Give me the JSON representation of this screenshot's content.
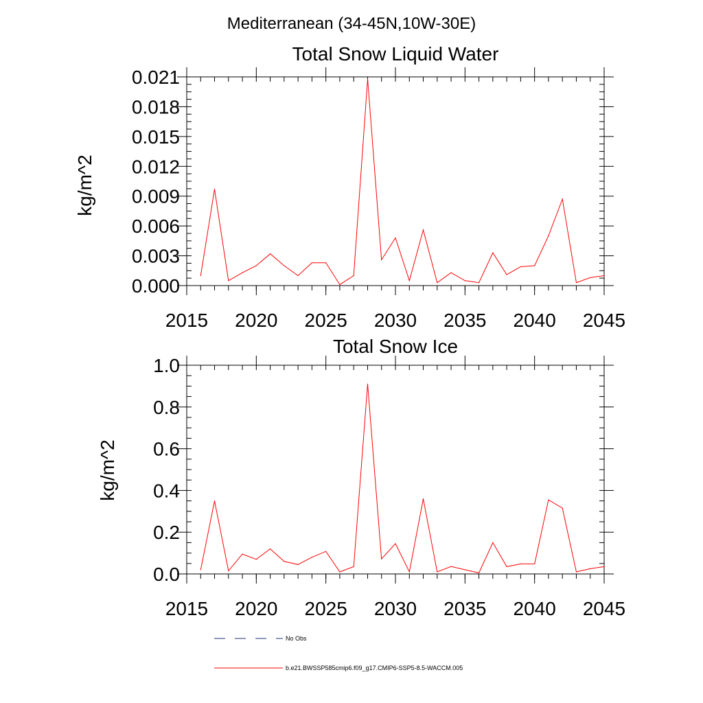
{
  "suptitle": "Mediterranean (34-45N,10W-30E)",
  "chart_data": [
    {
      "type": "line",
      "title": "Total Snow Liquid Water",
      "ylabel": "kg/m^2",
      "xlabel": "",
      "xlim": [
        2015,
        2045
      ],
      "ylim": [
        0,
        0.021
      ],
      "x_ticks": [
        "2015",
        "2020",
        "2025",
        "2030",
        "2035",
        "2040",
        "2045"
      ],
      "x_tick_values": [
        2015,
        2020,
        2025,
        2030,
        2035,
        2040,
        2045
      ],
      "y_ticks": [
        "0.000",
        "0.003",
        "0.006",
        "0.009",
        "0.012",
        "0.015",
        "0.018",
        "0.021"
      ],
      "y_tick_values": [
        0,
        0.003,
        0.006,
        0.009,
        0.012,
        0.015,
        0.018,
        0.021
      ],
      "y_minor_step": 0.00075,
      "x_minor_step": 1,
      "series": [
        {
          "color": "#ff0000",
          "x": [
            2016,
            2017,
            2018,
            2019,
            2020,
            2021,
            2022,
            2023,
            2024,
            2025,
            2026,
            2027,
            2028,
            2029,
            2030,
            2031,
            2032,
            2033,
            2034,
            2035,
            2036,
            2037,
            2038,
            2039,
            2040,
            2041,
            2042,
            2043,
            2044,
            2045
          ],
          "values": [
            0.001,
            0.0097,
            0.0005,
            0.0013,
            0.002,
            0.0032,
            0.002,
            0.001,
            0.0023,
            0.0023,
            0.0001,
            0.001,
            0.0208,
            0.0026,
            0.0048,
            0.0005,
            0.0056,
            0.0003,
            0.0013,
            0.0005,
            0.0003,
            0.0033,
            0.0011,
            0.0019,
            0.002,
            0.005,
            0.0087,
            0.0003,
            0.0008,
            0.001
          ]
        }
      ]
    },
    {
      "type": "line",
      "title": "Total Snow Ice",
      "ylabel": "kg/m^2",
      "xlabel": "",
      "xlim": [
        2015,
        2045
      ],
      "ylim": [
        0,
        1.0
      ],
      "x_ticks": [
        "2015",
        "2020",
        "2025",
        "2030",
        "2035",
        "2040",
        "2045"
      ],
      "x_tick_values": [
        2015,
        2020,
        2025,
        2030,
        2035,
        2040,
        2045
      ],
      "y_ticks": [
        "0.0",
        "0.2",
        "0.4",
        "0.6",
        "0.8",
        "1.0"
      ],
      "y_tick_values": [
        0,
        0.2,
        0.4,
        0.6,
        0.8,
        1.0
      ],
      "y_minor_step": 0.05,
      "x_minor_step": 1,
      "series": [
        {
          "color": "#ff0000",
          "x": [
            2016,
            2017,
            2018,
            2019,
            2020,
            2021,
            2022,
            2023,
            2024,
            2025,
            2026,
            2027,
            2028,
            2029,
            2030,
            2031,
            2032,
            2033,
            2034,
            2035,
            2036,
            2037,
            2038,
            2039,
            2040,
            2041,
            2042,
            2043,
            2044,
            2045
          ],
          "values": [
            0.02,
            0.35,
            0.015,
            0.095,
            0.07,
            0.12,
            0.06,
            0.045,
            0.08,
            0.108,
            0.01,
            0.035,
            0.91,
            0.072,
            0.145,
            0.01,
            0.36,
            0.01,
            0.036,
            0.02,
            0.005,
            0.15,
            0.035,
            0.048,
            0.048,
            0.355,
            0.315,
            0.01,
            0.025,
            0.035
          ]
        }
      ]
    }
  ],
  "legend": [
    {
      "label": "No Obs",
      "color": "#223377",
      "style": "dashed"
    },
    {
      "label": "b.e21.BWSSP585cmip6.f09_g17.CMIP6-SSP5-8.5-WACCM.005",
      "color": "#ff0000",
      "style": "solid"
    }
  ]
}
